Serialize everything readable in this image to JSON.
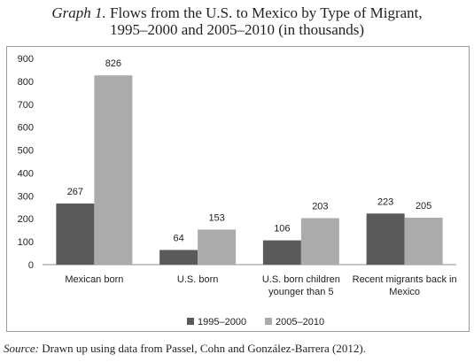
{
  "title": {
    "italic": "Graph 1.",
    "line1": "Flows from the U.S. to Mexico by Type of Migrant,",
    "line2": "1995–2000 and 2005–2010 (in thousands)"
  },
  "source": {
    "label": "Source:",
    "text": "Drawn up using data from Passel, Cohn and González-Barrera (2012)."
  },
  "colors": {
    "series1": "#5a5a5a",
    "series2": "#ababab",
    "frame": "#9a9a9a"
  },
  "chart_data": {
    "type": "bar",
    "title": "Graph 1. Flows from the U.S. to Mexico by Type of Migrant, 1995–2000 and 2005–2010 (in thousands)",
    "categories": [
      [
        "Mexican born"
      ],
      [
        "U.S. born"
      ],
      [
        "U.S. born children",
        "younger than 5"
      ],
      [
        "Recent migrants back in",
        "Mexico"
      ]
    ],
    "series": [
      {
        "name": "1995–2000",
        "values": [
          267,
          64,
          106,
          223
        ]
      },
      {
        "name": "2005–2010",
        "values": [
          826,
          153,
          203,
          205
        ]
      }
    ],
    "ylim": [
      0,
      900
    ],
    "yticks": [
      0,
      100,
      200,
      300,
      400,
      500,
      600,
      700,
      800,
      900
    ],
    "grid": false,
    "legend": "bottom",
    "xlabel": "",
    "ylabel": ""
  }
}
